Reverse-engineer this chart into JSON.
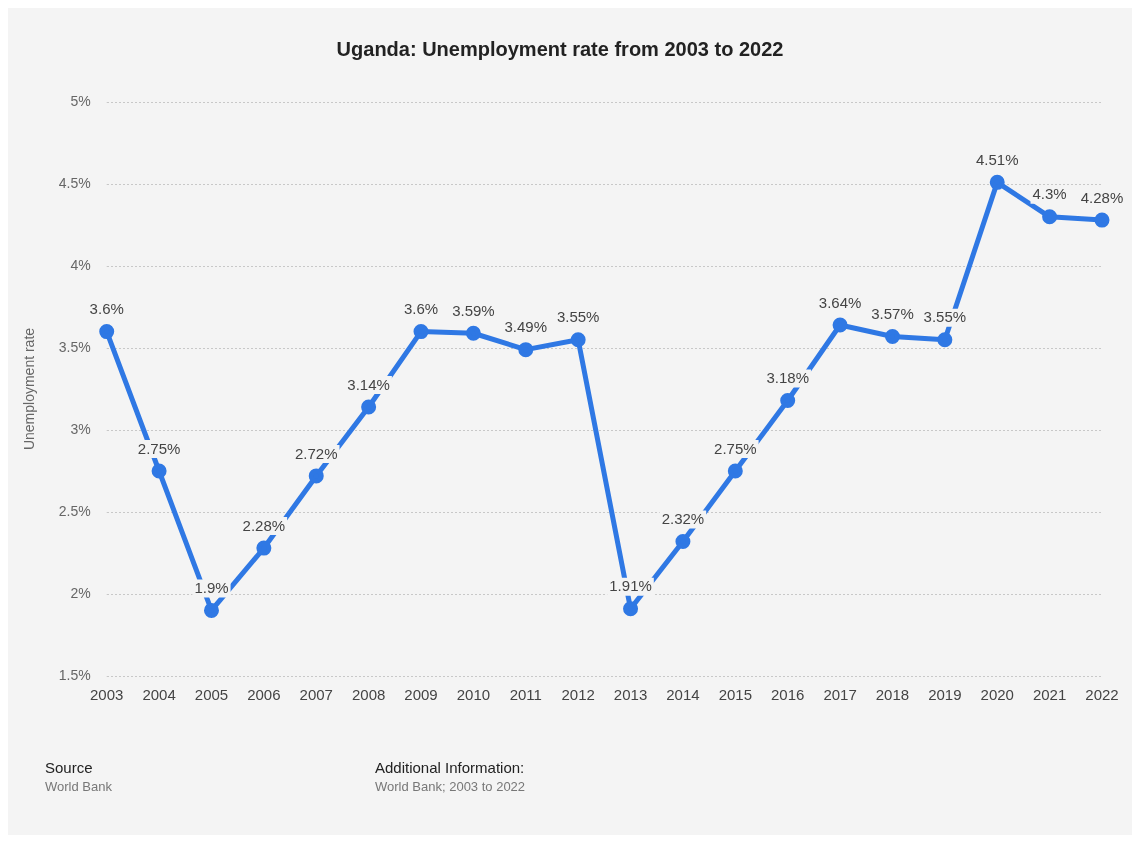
{
  "chart_data": {
    "type": "line",
    "title": "Uganda: Unemployment rate from 2003 to 2022",
    "ylabel": "Unemployment rate",
    "categories": [
      "2003",
      "2004",
      "2005",
      "2006",
      "2007",
      "2008",
      "2009",
      "2010",
      "2011",
      "2012",
      "2013",
      "2014",
      "2015",
      "2016",
      "2017",
      "2018",
      "2019",
      "2020",
      "2021",
      "2022"
    ],
    "series": [
      {
        "color": "#2f78e4",
        "values": [
          3.6,
          2.75,
          1.9,
          2.28,
          2.72,
          3.14,
          3.6,
          3.59,
          3.49,
          3.55,
          1.91,
          2.32,
          2.75,
          3.18,
          3.64,
          3.57,
          3.55,
          4.51,
          4.3,
          4.28
        ],
        "value_labels": [
          "3.6%",
          "2.75%",
          "1.9%",
          "2.28%",
          "2.72%",
          "3.14%",
          "3.6%",
          "3.59%",
          "3.49%",
          "3.55%",
          "1.91%",
          "2.32%",
          "2.75%",
          "3.18%",
          "3.64%",
          "3.57%",
          "3.55%",
          "4.51%",
          "4.3%",
          "4.28%"
        ]
      }
    ],
    "ylim": [
      1.5,
      5
    ],
    "yticks": [
      {
        "value": 1.5,
        "label": "1.5%"
      },
      {
        "value": 2,
        "label": "2%"
      },
      {
        "value": 2.5,
        "label": "2.5%"
      },
      {
        "value": 3,
        "label": "3%"
      },
      {
        "value": 3.5,
        "label": "3.5%"
      },
      {
        "value": 4,
        "label": "4%"
      },
      {
        "value": 4.5,
        "label": "4.5%"
      },
      {
        "value": 5,
        "label": "5%"
      }
    ],
    "grid": "y",
    "legend": false,
    "marker": "circle",
    "line_style": "solid",
    "annotations": [
      "Source",
      "World Bank",
      "Additional Information:",
      "World Bank; 2003 to 2022"
    ]
  }
}
